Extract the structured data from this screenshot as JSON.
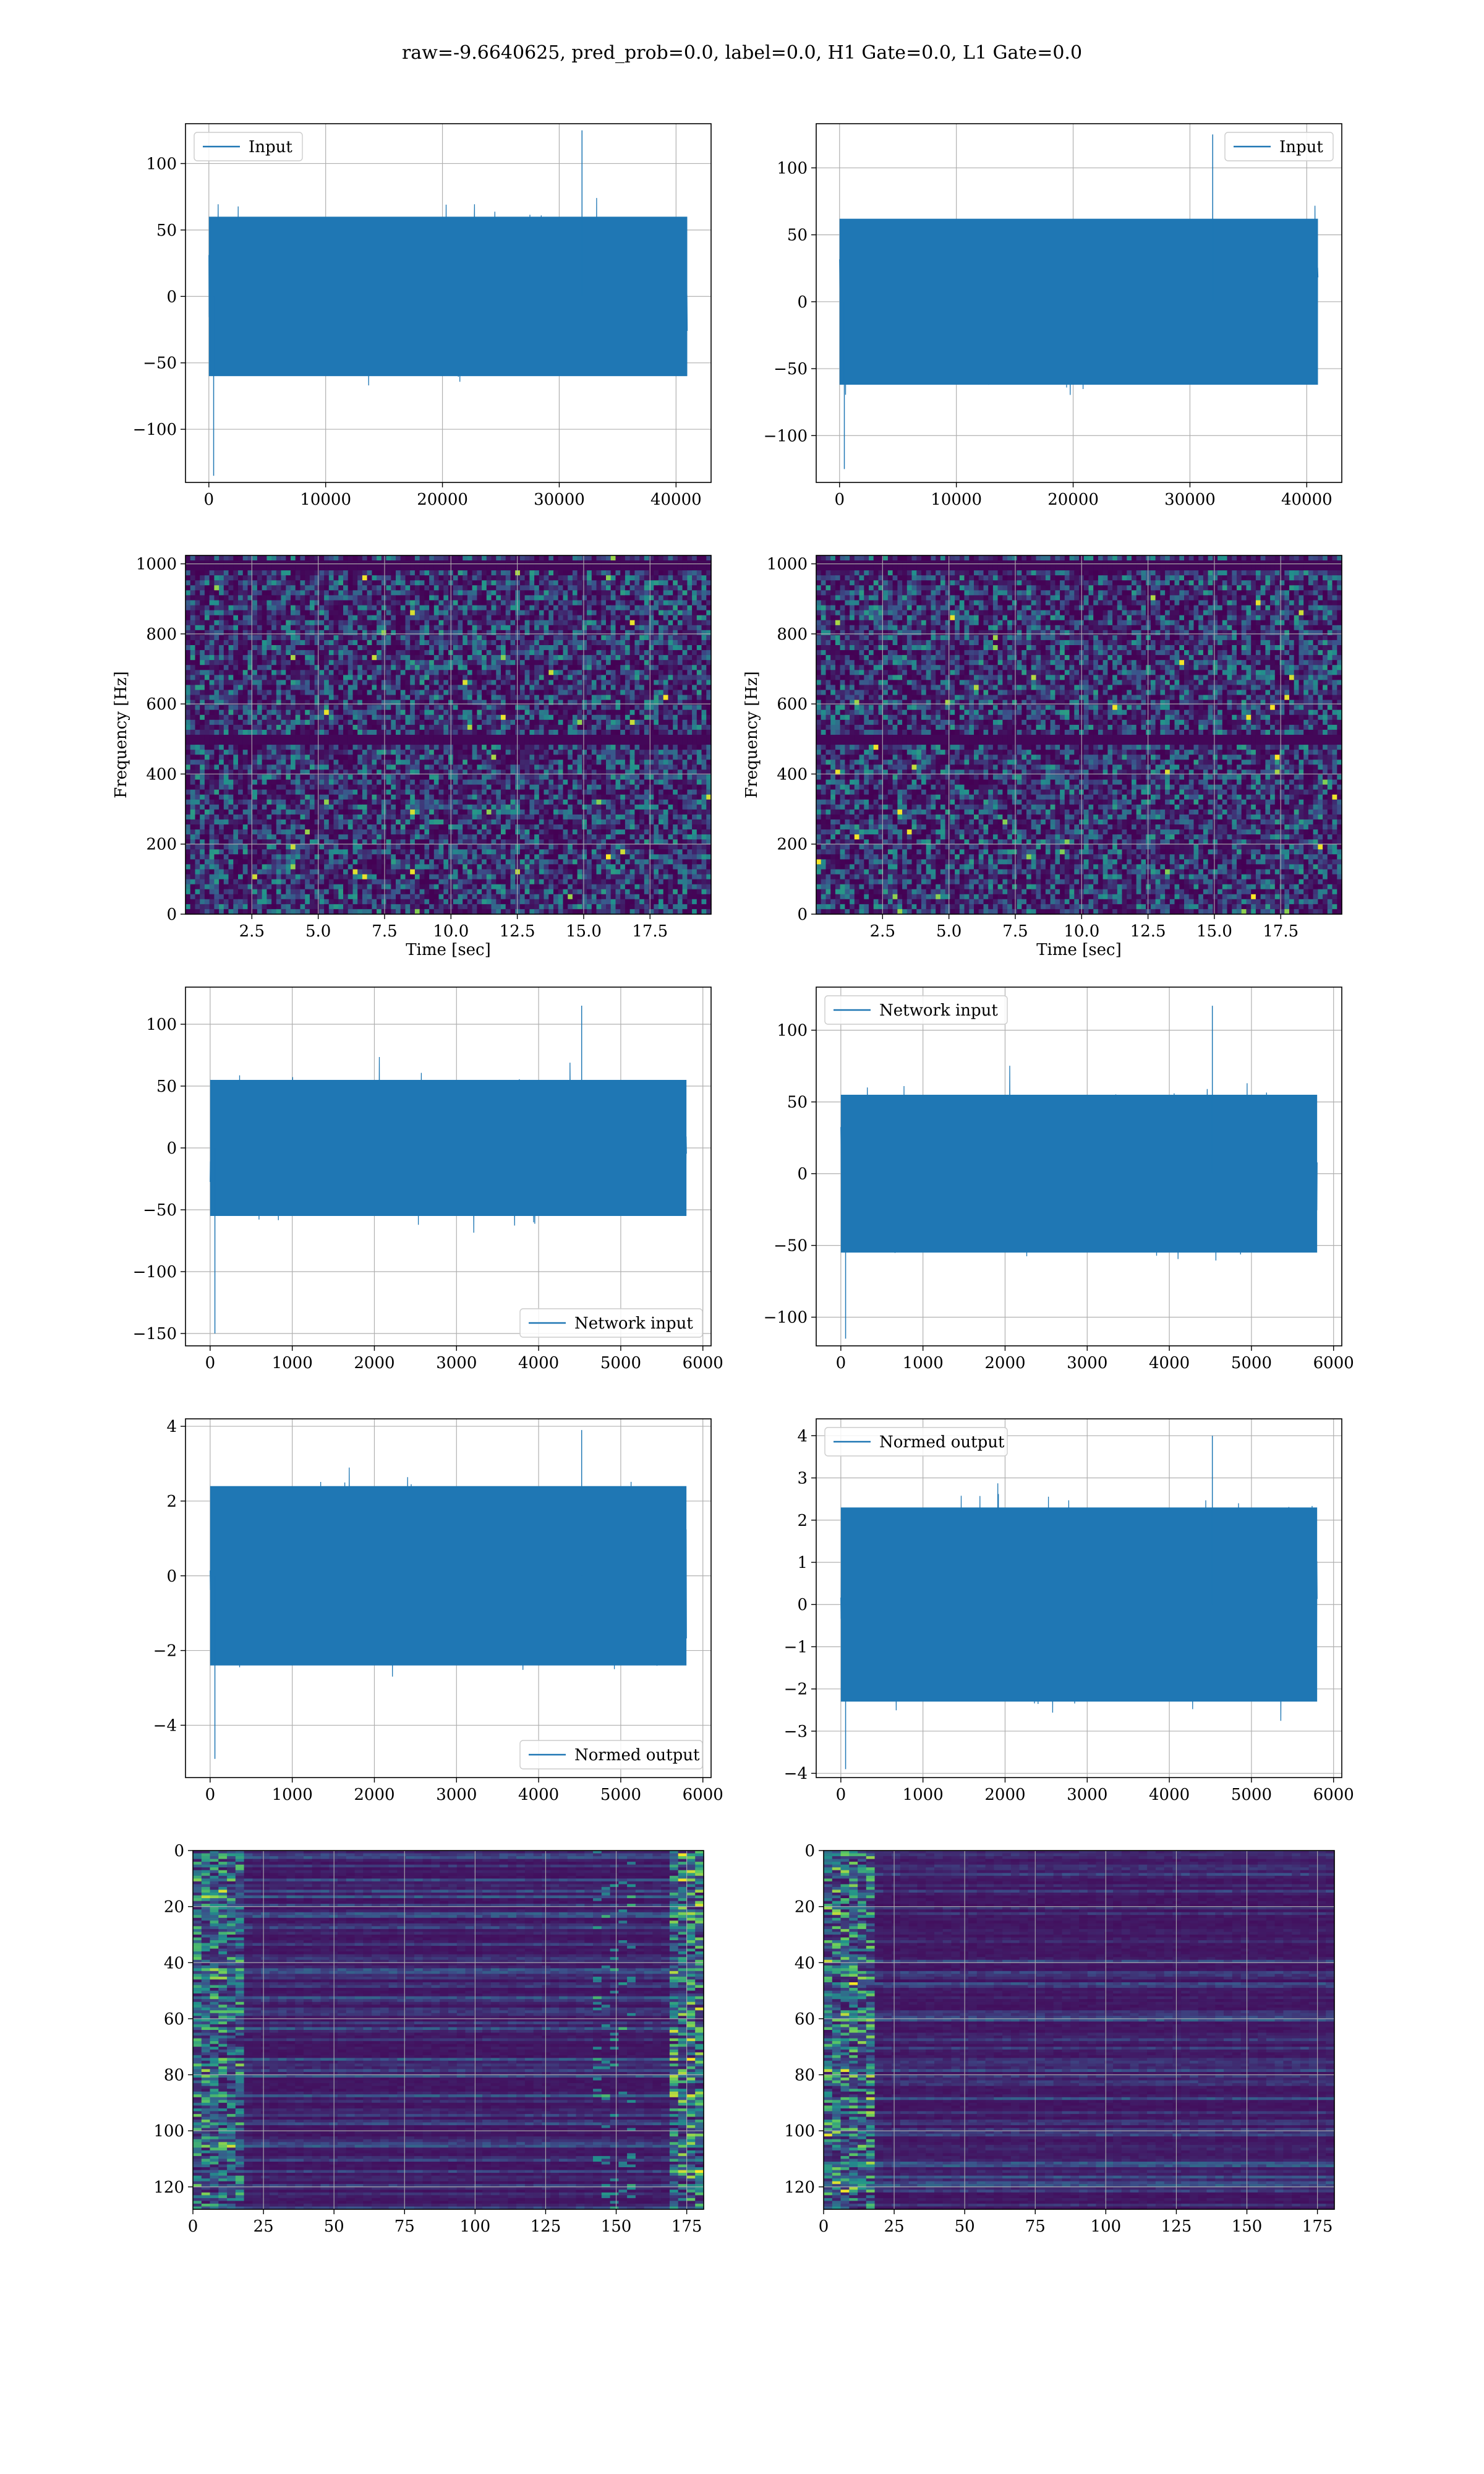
{
  "suptitle": "raw=-9.6640625, pred_prob=0.0, label=0.0, H1 Gate=0.0, L1 Gate=0.0",
  "colors": {
    "line": "#1f77b4",
    "grid": "#b0b0b0",
    "viridis": [
      "#440154",
      "#3b528b",
      "#21918c",
      "#5ec962",
      "#fde725"
    ]
  },
  "chart_data": [
    {
      "id": "input-left",
      "type": "line",
      "series": [
        {
          "name": "Input",
          "color": "#1f77b4"
        }
      ],
      "xlim": [
        -2000,
        43000
      ],
      "ylim": [
        -140,
        130
      ],
      "xticks": [
        0,
        10000,
        20000,
        30000,
        40000
      ],
      "yticks": [
        -100,
        -50,
        0,
        50,
        100
      ],
      "signal": {
        "x_start": 0,
        "x_end": 40960,
        "std": 22,
        "band": 60,
        "min": -135,
        "max": 125
      },
      "legend": "top-left",
      "grid": true
    },
    {
      "id": "input-right",
      "type": "line",
      "series": [
        {
          "name": "Input",
          "color": "#1f77b4"
        }
      ],
      "xlim": [
        -2000,
        43000
      ],
      "ylim": [
        -135,
        133
      ],
      "xticks": [
        0,
        10000,
        20000,
        30000,
        40000
      ],
      "yticks": [
        -100,
        -50,
        0,
        50,
        100
      ],
      "signal": {
        "x_start": 0,
        "x_end": 40960,
        "std": 22,
        "band": 62,
        "min": -125,
        "max": 125
      },
      "legend": "top-right",
      "grid": true
    },
    {
      "id": "spectrogram-left",
      "type": "heatmap",
      "colormap": "viridis",
      "xlabel": "Time [sec]",
      "ylabel": "Frequency [Hz]",
      "xlim": [
        0,
        19.8
      ],
      "ylim": [
        0,
        1024
      ],
      "xticks": [
        "2.5",
        "5.0",
        "7.5",
        "10.0",
        "12.5",
        "15.0",
        "17.5"
      ],
      "xtick_values": [
        2.5,
        5.0,
        7.5,
        10.0,
        12.5,
        15.0,
        17.5
      ],
      "yticks": [
        0,
        200,
        400,
        600,
        800,
        1000
      ],
      "grid": true,
      "dark_bands_hz": [
        500,
        1000
      ]
    },
    {
      "id": "spectrogram-right",
      "type": "heatmap",
      "colormap": "viridis",
      "xlabel": "Time [sec]",
      "ylabel": "Frequency [Hz]",
      "xlim": [
        0,
        19.8
      ],
      "ylim": [
        0,
        1024
      ],
      "xticks": [
        "2.5",
        "5.0",
        "7.5",
        "10.0",
        "12.5",
        "15.0",
        "17.5"
      ],
      "xtick_values": [
        2.5,
        5.0,
        7.5,
        10.0,
        12.5,
        15.0,
        17.5
      ],
      "yticks": [
        0,
        200,
        400,
        600,
        800,
        1000
      ],
      "grid": true,
      "dark_bands_hz": [
        500,
        1000
      ]
    },
    {
      "id": "network-left",
      "type": "line",
      "series": [
        {
          "name": "Network input",
          "color": "#1f77b4"
        }
      ],
      "xlim": [
        -300,
        6100
      ],
      "ylim": [
        -160,
        130
      ],
      "xticks": [
        0,
        1000,
        2000,
        3000,
        4000,
        5000,
        6000
      ],
      "yticks": [
        -150,
        -100,
        -50,
        0,
        50,
        100
      ],
      "signal": {
        "x_start": 0,
        "x_end": 5800,
        "std": 21,
        "band": 55,
        "min": -150,
        "max": 115
      },
      "legend": "bottom-right",
      "grid": true
    },
    {
      "id": "network-right",
      "type": "line",
      "series": [
        {
          "name": "Network input",
          "color": "#1f77b4"
        }
      ],
      "xlim": [
        -300,
        6100
      ],
      "ylim": [
        -120,
        130
      ],
      "xticks": [
        0,
        1000,
        2000,
        3000,
        4000,
        5000,
        6000
      ],
      "yticks": [
        -100,
        -50,
        0,
        50,
        100
      ],
      "signal": {
        "x_start": 0,
        "x_end": 5800,
        "std": 21,
        "band": 55,
        "min": -115,
        "max": 117
      },
      "legend": "top-left",
      "grid": true
    },
    {
      "id": "normed-left",
      "type": "line",
      "series": [
        {
          "name": "Normed output",
          "color": "#1f77b4"
        }
      ],
      "xlim": [
        -300,
        6100
      ],
      "ylim": [
        -5.4,
        4.2
      ],
      "xticks": [
        0,
        1000,
        2000,
        3000,
        4000,
        5000,
        6000
      ],
      "yticks": [
        -4,
        -2,
        0,
        2,
        4
      ],
      "signal": {
        "x_start": 0,
        "x_end": 5800,
        "std": 0.9,
        "band": 2.4,
        "min": -4.9,
        "max": 3.9
      },
      "legend": "bottom-right",
      "grid": true
    },
    {
      "id": "normed-right",
      "type": "line",
      "series": [
        {
          "name": "Normed output",
          "color": "#1f77b4"
        }
      ],
      "xlim": [
        -300,
        6100
      ],
      "ylim": [
        -4.1,
        4.4
      ],
      "xticks": [
        0,
        1000,
        2000,
        3000,
        4000,
        5000,
        6000
      ],
      "yticks": [
        -4,
        -3,
        -2,
        -1,
        0,
        1,
        2,
        3,
        4
      ],
      "signal": {
        "x_start": 0,
        "x_end": 5800,
        "std": 0.9,
        "band": 2.3,
        "min": -3.9,
        "max": 4.0
      },
      "legend": "top-left",
      "grid": true
    },
    {
      "id": "features-left",
      "type": "heatmap",
      "colormap": "viridis",
      "xlim": [
        0,
        181
      ],
      "ylim": [
        128,
        0
      ],
      "xticks": [
        0,
        25,
        50,
        75,
        100,
        125,
        150,
        175
      ],
      "yticks": [
        0,
        20,
        40,
        60,
        80,
        100,
        120
      ],
      "grid": true,
      "bright_columns": "edges"
    },
    {
      "id": "features-right",
      "type": "heatmap",
      "colormap": "viridis",
      "xlim": [
        0,
        181
      ],
      "ylim": [
        128,
        0
      ],
      "xticks": [
        0,
        25,
        50,
        75,
        100,
        125,
        150,
        175
      ],
      "yticks": [
        0,
        20,
        40,
        60,
        80,
        100,
        120
      ],
      "grid": true,
      "bright_columns": "left"
    }
  ]
}
